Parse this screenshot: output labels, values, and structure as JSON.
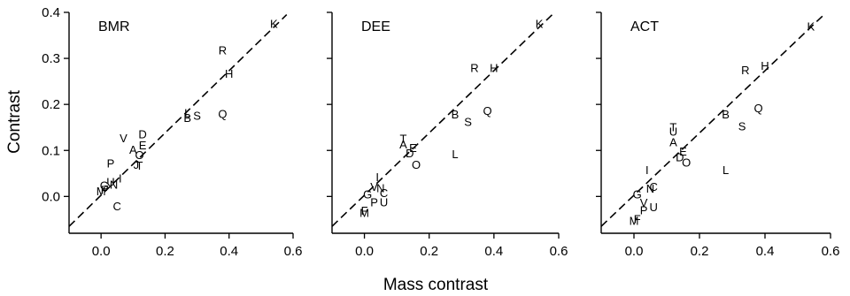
{
  "figure": {
    "y_axis_title": "Contrast",
    "x_axis_title": "Mass contrast"
  },
  "chart_data": [
    {
      "type": "scatter",
      "title": "BMR",
      "xlabel": "Mass contrast",
      "ylabel": "Contrast",
      "xlim": [
        -0.1,
        0.6
      ],
      "ylim": [
        -0.08,
        0.4
      ],
      "x_ticks": [
        0.0,
        0.2,
        0.4,
        0.6
      ],
      "x_tick_labels": [
        "0.0",
        "0.2",
        "0.4",
        "0.6"
      ],
      "y_ticks": [
        0.0,
        0.1,
        0.2,
        0.3,
        0.4
      ],
      "y_tick_labels": [
        "0.0",
        "0.1",
        "0.2",
        "0.3",
        "0.4"
      ],
      "grid": false,
      "fit_line": {
        "style": "dashed",
        "x": [
          -0.1,
          0.58
        ],
        "y": [
          -0.065,
          0.395
        ]
      },
      "points": [
        {
          "label": "K",
          "x": 0.54,
          "y": 0.376
        },
        {
          "label": "R",
          "x": 0.38,
          "y": 0.318
        },
        {
          "label": "H",
          "x": 0.4,
          "y": 0.268
        },
        {
          "label": "L",
          "x": 0.27,
          "y": 0.182
        },
        {
          "label": "B",
          "x": 0.27,
          "y": 0.172
        },
        {
          "label": "S",
          "x": 0.3,
          "y": 0.176
        },
        {
          "label": "Q",
          "x": 0.38,
          "y": 0.18
        },
        {
          "label": "D",
          "x": 0.13,
          "y": 0.136
        },
        {
          "label": "V",
          "x": 0.07,
          "y": 0.127
        },
        {
          "label": "E",
          "x": 0.13,
          "y": 0.112
        },
        {
          "label": "A",
          "x": 0.1,
          "y": 0.102
        },
        {
          "label": "O",
          "x": 0.12,
          "y": 0.091
        },
        {
          "label": "J",
          "x": 0.11,
          "y": 0.07
        },
        {
          "label": "T",
          "x": 0.12,
          "y": 0.068
        },
        {
          "label": "P",
          "x": 0.03,
          "y": 0.073
        },
        {
          "label": "I",
          "x": 0.06,
          "y": 0.04
        },
        {
          "label": "U",
          "x": 0.03,
          "y": 0.032
        },
        {
          "label": "N",
          "x": 0.04,
          "y": 0.027
        },
        {
          "label": "G",
          "x": 0.01,
          "y": 0.025
        },
        {
          "label": "F",
          "x": 0.01,
          "y": 0.015
        },
        {
          "label": "M",
          "x": 0.0,
          "y": 0.012
        },
        {
          "label": "C",
          "x": 0.05,
          "y": -0.02
        }
      ]
    },
    {
      "type": "scatter",
      "title": "DEE",
      "xlabel": "Mass contrast",
      "ylabel": "",
      "xlim": [
        -0.1,
        0.6
      ],
      "ylim": [
        -0.08,
        0.4
      ],
      "x_ticks": [
        0.0,
        0.2,
        0.4,
        0.6
      ],
      "x_tick_labels": [
        "0.0",
        "0.2",
        "0.4",
        "0.6"
      ],
      "y_ticks": [
        0.0,
        0.1,
        0.2,
        0.3,
        0.4
      ],
      "grid": false,
      "fit_line": {
        "style": "dashed",
        "x": [
          -0.1,
          0.58
        ],
        "y": [
          -0.065,
          0.395
        ]
      },
      "points": [
        {
          "label": "K",
          "x": 0.54,
          "y": 0.376
        },
        {
          "label": "R",
          "x": 0.34,
          "y": 0.28
        },
        {
          "label": "H",
          "x": 0.4,
          "y": 0.28
        },
        {
          "label": "B",
          "x": 0.28,
          "y": 0.179
        },
        {
          "label": "S",
          "x": 0.32,
          "y": 0.163
        },
        {
          "label": "Q",
          "x": 0.38,
          "y": 0.187
        },
        {
          "label": "T",
          "x": 0.12,
          "y": 0.126
        },
        {
          "label": "A",
          "x": 0.12,
          "y": 0.114
        },
        {
          "label": "E",
          "x": 0.15,
          "y": 0.106
        },
        {
          "label": "D",
          "x": 0.14,
          "y": 0.095
        },
        {
          "label": "O",
          "x": 0.16,
          "y": 0.07
        },
        {
          "label": "L",
          "x": 0.28,
          "y": 0.093
        },
        {
          "label": "I",
          "x": 0.04,
          "y": 0.043
        },
        {
          "label": "V",
          "x": 0.03,
          "y": 0.022
        },
        {
          "label": "N",
          "x": 0.05,
          "y": 0.019
        },
        {
          "label": "C",
          "x": 0.06,
          "y": 0.008
        },
        {
          "label": "G",
          "x": 0.01,
          "y": 0.005
        },
        {
          "label": "P",
          "x": 0.03,
          "y": -0.012
        },
        {
          "label": "U",
          "x": 0.06,
          "y": -0.012
        },
        {
          "label": "F",
          "x": 0.0,
          "y": -0.03
        },
        {
          "label": "M",
          "x": 0.0,
          "y": -0.035
        }
      ]
    },
    {
      "type": "scatter",
      "title": "ACT",
      "xlabel": "Mass contrast",
      "ylabel": "",
      "xlim": [
        -0.1,
        0.6
      ],
      "ylim": [
        -0.08,
        0.4
      ],
      "x_ticks": [
        0.0,
        0.2,
        0.4,
        0.6
      ],
      "x_tick_labels": [
        "0.0",
        "0.2",
        "0.4",
        "0.6"
      ],
      "y_ticks": [
        0.0,
        0.1,
        0.2,
        0.3,
        0.4
      ],
      "grid": false,
      "fit_line": {
        "style": "dashed",
        "x": [
          -0.1,
          0.58
        ],
        "y": [
          -0.065,
          0.395
        ]
      },
      "points": [
        {
          "label": "K",
          "x": 0.54,
          "y": 0.37
        },
        {
          "label": "R",
          "x": 0.34,
          "y": 0.275
        },
        {
          "label": "H",
          "x": 0.4,
          "y": 0.285
        },
        {
          "label": "B",
          "x": 0.28,
          "y": 0.179
        },
        {
          "label": "S",
          "x": 0.33,
          "y": 0.153
        },
        {
          "label": "Q",
          "x": 0.38,
          "y": 0.193
        },
        {
          "label": "T",
          "x": 0.12,
          "y": 0.151
        },
        {
          "label": "U",
          "x": 0.12,
          "y": 0.142
        },
        {
          "label": "A",
          "x": 0.12,
          "y": 0.119
        },
        {
          "label": "E",
          "x": 0.15,
          "y": 0.099
        },
        {
          "label": "D",
          "x": 0.14,
          "y": 0.086
        },
        {
          "label": "O",
          "x": 0.16,
          "y": 0.075
        },
        {
          "label": "L",
          "x": 0.28,
          "y": 0.058
        },
        {
          "label": "I",
          "x": 0.04,
          "y": 0.058
        },
        {
          "label": "N",
          "x": 0.05,
          "y": 0.018
        },
        {
          "label": "C",
          "x": 0.06,
          "y": 0.022
        },
        {
          "label": "G",
          "x": 0.01,
          "y": 0.005
        },
        {
          "label": "V",
          "x": 0.03,
          "y": -0.013
        },
        {
          "label": "P",
          "x": 0.03,
          "y": -0.029
        },
        {
          "label": "U",
          "x": 0.06,
          "y": -0.022
        },
        {
          "label": "F",
          "x": 0.01,
          "y": -0.048
        },
        {
          "label": "M",
          "x": 0.0,
          "y": -0.052
        }
      ]
    }
  ]
}
